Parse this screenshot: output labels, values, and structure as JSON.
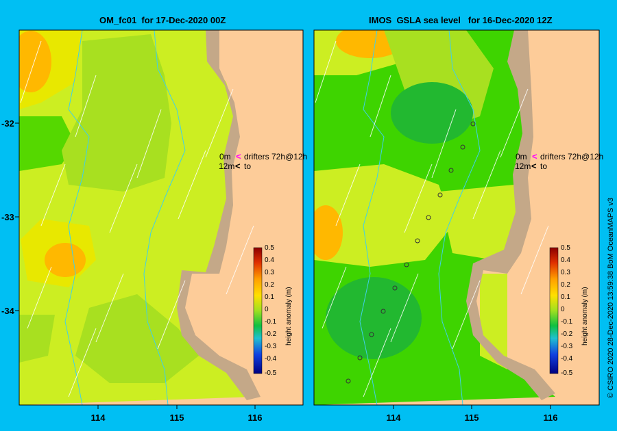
{
  "panels": [
    {
      "title": "OM_fc01  for 17-Dec-2020 00Z"
    },
    {
      "title": "IMOS  GSLA sea level   for 16-Dec-2020 12Z"
    }
  ],
  "x_ticks": [
    "114",
    "115",
    "116"
  ],
  "y_ticks": [
    "-32",
    "-33",
    "-34"
  ],
  "legend": {
    "row1_left": "0m",
    "row1_right": "drifters 72h@12h",
    "row2_left": "12m",
    "row2_right": "to"
  },
  "colorbar": {
    "label": "height anomaly  (m)",
    "ticks": [
      "0.5",
      "0.4",
      "0.3",
      "0.2",
      "0.1",
      "0",
      "-0.1",
      "-0.2",
      "-0.3",
      "-0.4",
      "-0.5"
    ]
  },
  "credit": "© CSIRO  2020    28-Dec-2020 13:59:38  BoM  OceanMAPS v3",
  "colors": {
    "background": "#00bff3",
    "land": "#fdcc99",
    "shelf": "#c4a888",
    "drifter_magenta": "#ff00ff"
  }
}
